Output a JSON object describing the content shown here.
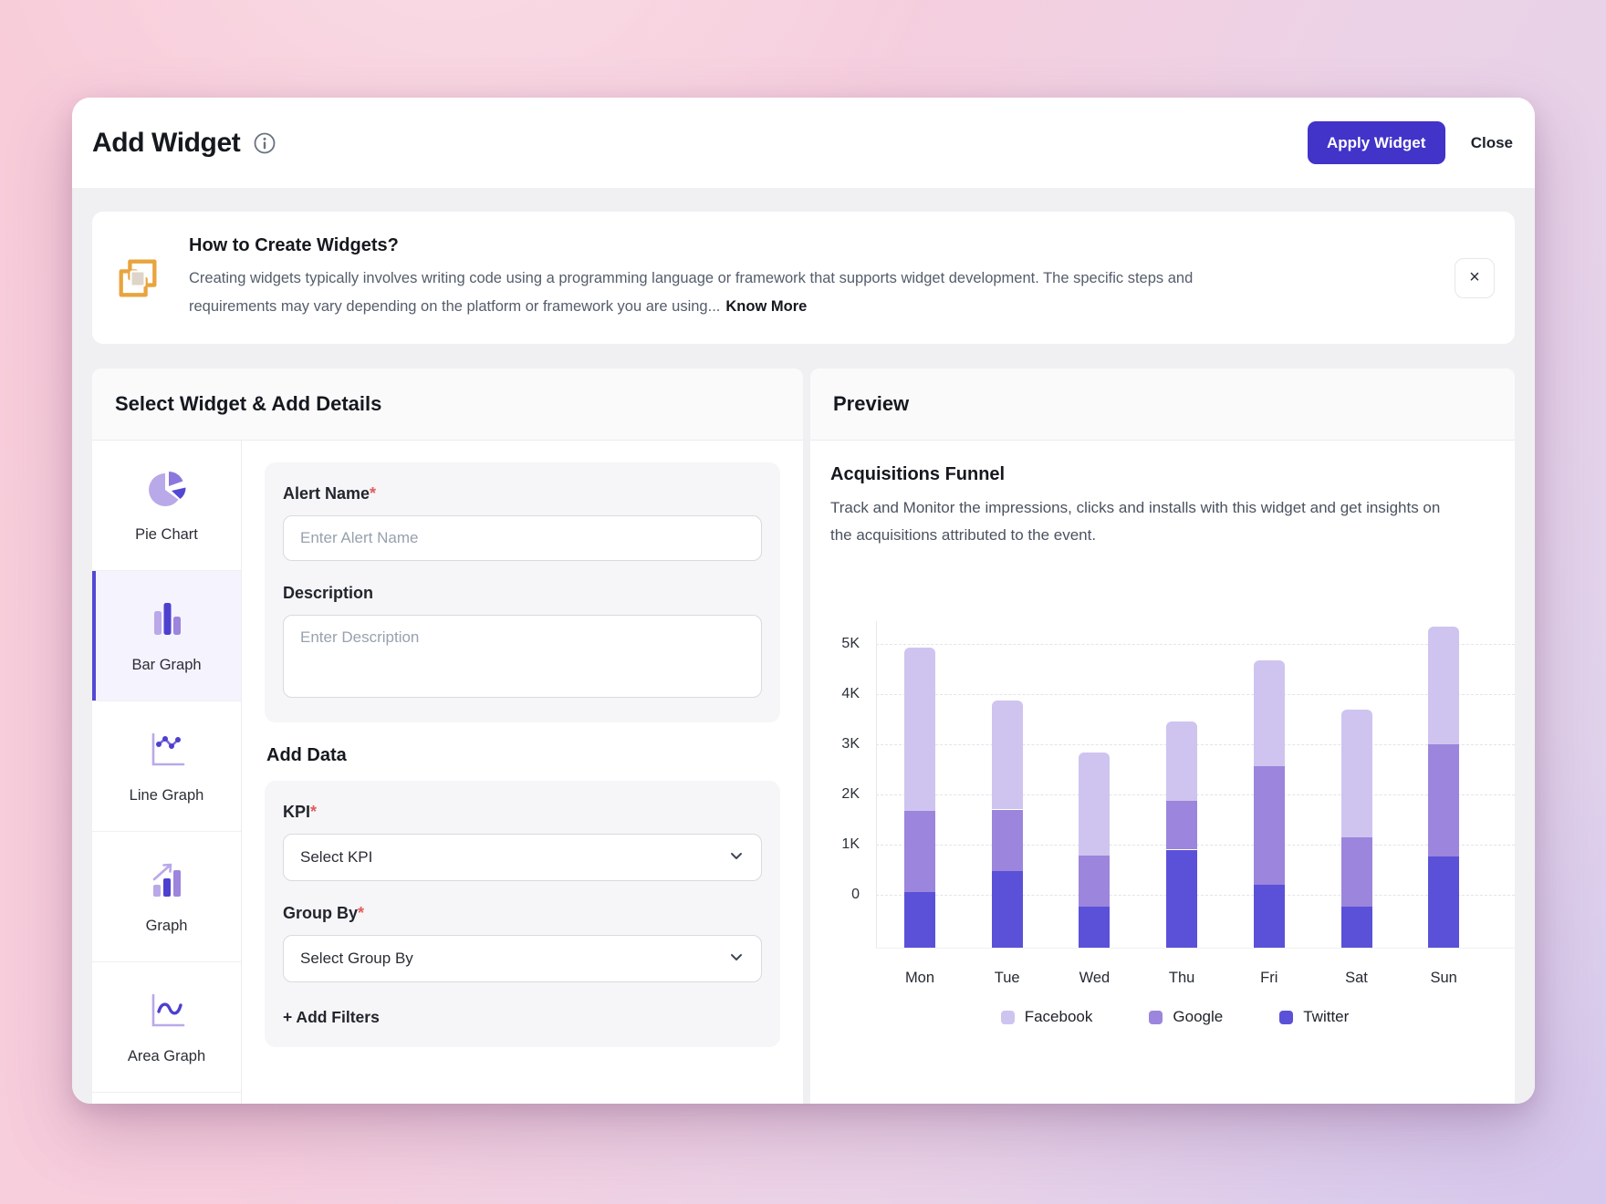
{
  "header": {
    "title": "Add Widget",
    "apply_label": "Apply Widget",
    "close_label": "Close"
  },
  "banner": {
    "title": "How to Create Widgets?",
    "body": "Creating widgets typically involves writing code using a programming language or framework that supports widget development. The specific steps and requirements may vary depending on the platform or framework you are using...",
    "link_label": "Know More",
    "close_icon": "×"
  },
  "left_panel": {
    "title": "Select Widget & Add Details",
    "widgets": [
      {
        "label": "Pie Chart",
        "selected": false
      },
      {
        "label": "Bar Graph",
        "selected": true
      },
      {
        "label": "Line Graph",
        "selected": false
      },
      {
        "label": "Graph",
        "selected": false
      },
      {
        "label": "Area Graph",
        "selected": false
      }
    ]
  },
  "form": {
    "alert_name_label": "Alert Name",
    "required_mark": "*",
    "alert_name_placeholder": "Enter Alert Name",
    "description_label": "Description",
    "description_placeholder": "Enter Description",
    "add_data_title": "Add Data",
    "kpi_label": "KPI",
    "kpi_placeholder": "Select KPI",
    "group_by_label": "Group By",
    "group_by_placeholder": "Select Group By",
    "add_filters_label": "+ Add Filters"
  },
  "preview": {
    "title": "Preview",
    "widget_title": "Acquisitions Funnel",
    "widget_description": "Track and Monitor the impressions, clicks and installs with this widget and get insights on the acquisitions attributed to the event."
  },
  "chart_data": {
    "type": "bar",
    "stacked": true,
    "title": "Acquisitions Funnel",
    "categories": [
      "Mon",
      "Tue",
      "Wed",
      "Thu",
      "Fri",
      "Sat",
      "Sun"
    ],
    "unit": "K",
    "baseline_k": -1.05,
    "series": [
      {
        "name": "Twitter",
        "color": "#5B51D8",
        "cumulative_top_k": [
          0.05,
          0.47,
          -0.24,
          0.9,
          0.2,
          -0.24,
          0.76
        ]
      },
      {
        "name": "Google",
        "color": "#9C85DC",
        "cumulative_top_k": [
          1.68,
          1.7,
          0.78,
          1.88,
          2.56,
          1.14,
          3.0
        ]
      },
      {
        "name": "Facebook",
        "color": "#CFC4EF",
        "cumulative_top_k": [
          4.92,
          3.88,
          2.84,
          3.45,
          4.67,
          3.7,
          5.35
        ]
      }
    ],
    "y_ticks": [
      {
        "label": "5K",
        "value": 5
      },
      {
        "label": "4K",
        "value": 4
      },
      {
        "label": "3K",
        "value": 3
      },
      {
        "label": "2K",
        "value": 2
      },
      {
        "label": "1K",
        "value": 1
      },
      {
        "label": "0",
        "value": 0
      }
    ],
    "ylim": [
      -1.05,
      5.6
    ],
    "grid": true,
    "legend_position": "bottom",
    "legend": [
      {
        "name": "Facebook",
        "color": "#CFC4EF"
      },
      {
        "name": "Google",
        "color": "#9C85DC"
      },
      {
        "name": "Twitter",
        "color": "#5B51D8"
      }
    ]
  }
}
